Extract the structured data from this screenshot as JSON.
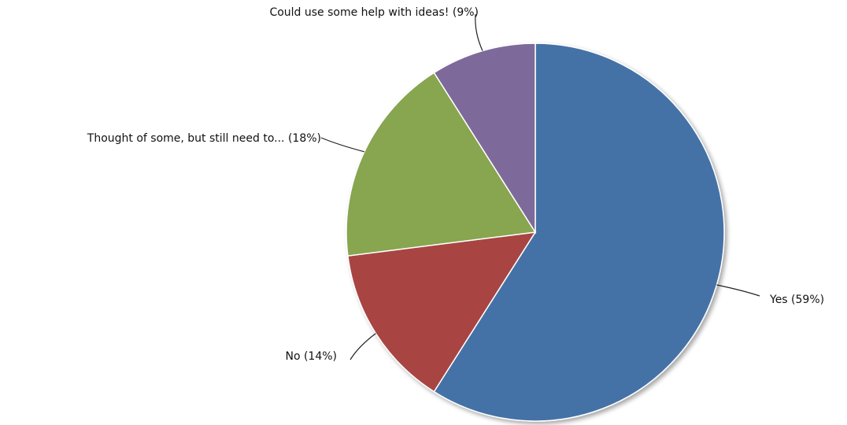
{
  "chart_data": {
    "type": "pie",
    "slices": [
      {
        "label": "Yes (59%)",
        "value": 59,
        "color": "#4472a6"
      },
      {
        "label": "No (14%)",
        "value": 14,
        "color": "#a84442"
      },
      {
        "label": "Thought of some, but still need to... (18%)",
        "value": 18,
        "color": "#88a550"
      },
      {
        "label": "Could use some help with ideas! (9%)",
        "value": 9,
        "color": "#7e6a9a"
      }
    ]
  }
}
